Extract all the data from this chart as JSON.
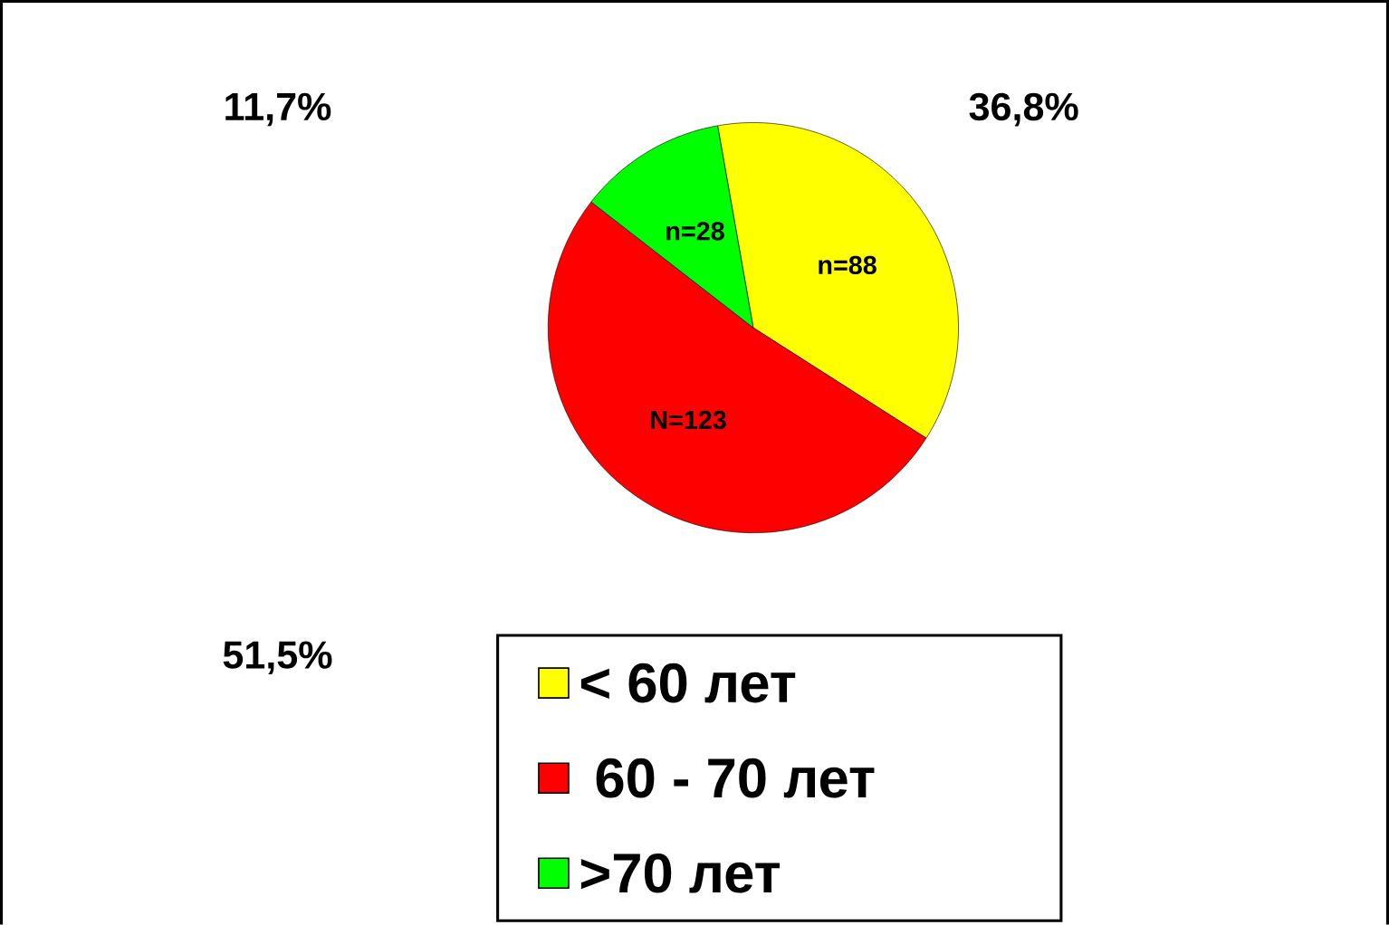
{
  "chart_data": {
    "type": "pie",
    "categories": [
      "< 60 лет",
      " 60 - 70 лет",
      ">70 лет"
    ],
    "values": [
      88,
      123,
      28
    ],
    "colors": [
      "#ffff00",
      "#ff0000",
      "#00ff00"
    ],
    "value_labels": [
      "n=88",
      "N=123",
      "n=28"
    ],
    "annotations": [
      "36,8%",
      "51,5%",
      "11,7%"
    ],
    "legend": "bottom"
  }
}
